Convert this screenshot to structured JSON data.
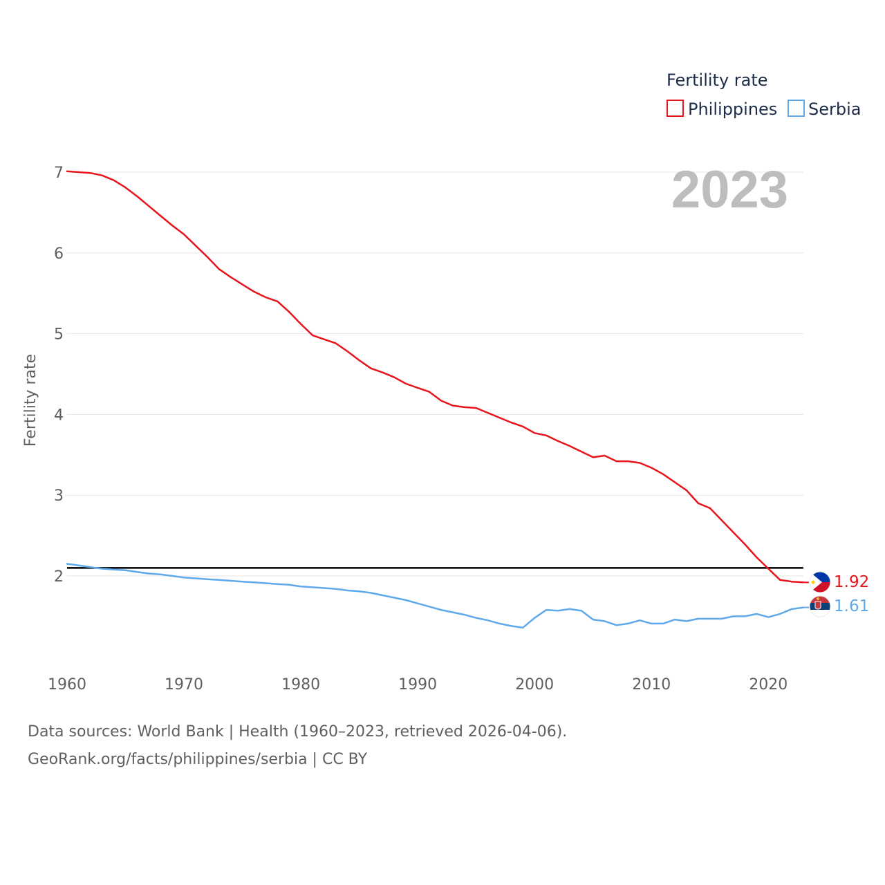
{
  "chart_data": {
    "type": "line",
    "ylabel": "Fertility rate",
    "xlabel": "",
    "legend_title": "Fertility rate",
    "legend_position": "top-right",
    "current_year_label": "2023",
    "xlim": [
      1960,
      2023
    ],
    "ylim": [
      1.0,
      7.2
    ],
    "x_ticks": [
      1960,
      1970,
      1980,
      1990,
      2000,
      2010,
      2020
    ],
    "y_ticks": [
      2,
      3,
      4,
      5,
      6,
      7
    ],
    "grid": true,
    "reference_line": {
      "value": 2.1
    },
    "x": [
      1960,
      1961,
      1962,
      1963,
      1964,
      1965,
      1966,
      1967,
      1968,
      1969,
      1970,
      1971,
      1972,
      1973,
      1974,
      1975,
      1976,
      1977,
      1978,
      1979,
      1980,
      1981,
      1982,
      1983,
      1984,
      1985,
      1986,
      1987,
      1988,
      1989,
      1990,
      1991,
      1992,
      1993,
      1994,
      1995,
      1996,
      1997,
      1998,
      1999,
      2000,
      2001,
      2002,
      2003,
      2004,
      2005,
      2006,
      2007,
      2008,
      2009,
      2010,
      2011,
      2012,
      2013,
      2014,
      2015,
      2016,
      2017,
      2018,
      2019,
      2020,
      2021,
      2022,
      2023
    ],
    "series": [
      {
        "name": "Philippines",
        "color": "#e8141b",
        "end_label": "1.92",
        "values": [
          7.01,
          7.0,
          6.99,
          6.96,
          6.9,
          6.81,
          6.7,
          6.58,
          6.46,
          6.34,
          6.23,
          6.09,
          5.95,
          5.8,
          5.7,
          5.61,
          5.52,
          5.45,
          5.4,
          5.27,
          5.12,
          4.98,
          4.93,
          4.88,
          4.78,
          4.67,
          4.57,
          4.52,
          4.46,
          4.38,
          4.33,
          4.28,
          4.17,
          4.11,
          4.09,
          4.08,
          4.02,
          3.96,
          3.9,
          3.85,
          3.77,
          3.74,
          3.67,
          3.61,
          3.54,
          3.47,
          3.49,
          3.42,
          3.42,
          3.4,
          3.34,
          3.26,
          3.16,
          3.06,
          2.9,
          2.84,
          2.69,
          2.54,
          2.39,
          2.23,
          2.09,
          1.95,
          1.93,
          1.92
        ]
      },
      {
        "name": "Serbia",
        "color": "#5ea9ea",
        "end_label": "1.61",
        "values": [
          2.15,
          2.13,
          2.11,
          2.09,
          2.08,
          2.07,
          2.05,
          2.03,
          2.02,
          2.0,
          1.98,
          1.97,
          1.96,
          1.95,
          1.94,
          1.93,
          1.92,
          1.91,
          1.9,
          1.89,
          1.87,
          1.86,
          1.85,
          1.84,
          1.82,
          1.81,
          1.79,
          1.76,
          1.73,
          1.7,
          1.66,
          1.62,
          1.58,
          1.55,
          1.52,
          1.48,
          1.45,
          1.41,
          1.38,
          1.36,
          1.48,
          1.58,
          1.57,
          1.59,
          1.57,
          1.46,
          1.44,
          1.39,
          1.41,
          1.45,
          1.41,
          1.41,
          1.46,
          1.44,
          1.47,
          1.47,
          1.47,
          1.5,
          1.5,
          1.53,
          1.49,
          1.53,
          1.59,
          1.61
        ]
      }
    ]
  },
  "footer": {
    "line1": "Data sources: World Bank | Health (1960–2023, retrieved 2026-04-06).",
    "line2": "GeoRank.org/facts/philippines/serbia | CC BY"
  }
}
